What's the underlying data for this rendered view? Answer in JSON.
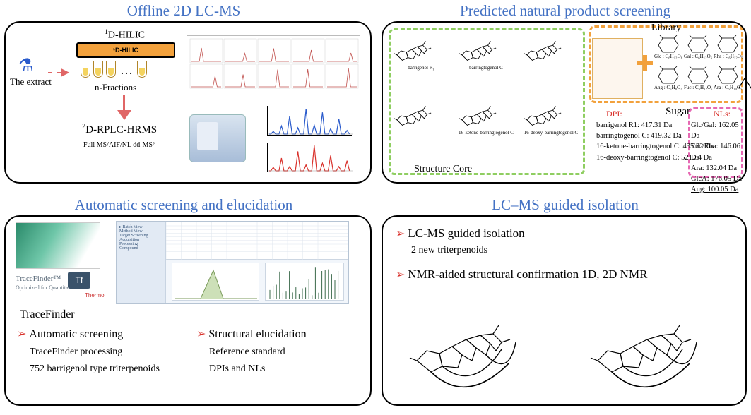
{
  "panel1": {
    "title": "Offline 2D LC-MS",
    "hilic_label_html": "<sup>1</sup>D-HILIC",
    "hilic_col_label": "¹D-HILIC",
    "extract_label": "The extract",
    "n_fractions": "n-Fractions",
    "rplc_label_html": "<sup>2</sup>D-RPLC-HRMS",
    "fullms": "Full MS/AIF/NL dd-MS²",
    "chrom1_peaks": [
      5,
      12,
      8,
      22,
      6,
      30,
      10,
      44,
      12,
      38,
      14,
      70,
      9,
      28,
      6,
      14,
      4
    ],
    "mini1_color": "#2a5bcc",
    "mini1_peaks": [
      6,
      18,
      40,
      14,
      56,
      20,
      48,
      12,
      34,
      8
    ],
    "mini2_color": "#d9322c",
    "mini2_peaks": [
      8,
      30,
      10,
      46,
      14,
      60,
      18,
      36,
      10,
      24
    ]
  },
  "panel2": {
    "title": "Predicted natural product screening",
    "library_label": "Library",
    "sugar_label": "Sugar",
    "core_label": "Structure Core",
    "dpi_label": "DPI:",
    "nl_label": "NLs:",
    "core_mol_labels": [
      "barrigenol R₁",
      "barringtogenol C",
      "",
      "",
      "16-ketone-barringtogenol C",
      "16-deoxy-barringtogenol C"
    ],
    "dpi_lines": [
      "barrigenol R1: 417.31 Da",
      "barringtogenol C: 419.32 Da",
      "16-ketone-barringtogenol C: 435.32 Da",
      "16-deoxy-barringtogenol C: 521.34 Da"
    ],
    "nl_lines": [
      "Glc/Gal: 162.05 Da",
      "Fuc/Rha: 146.06 Da",
      "Ara: 132.04 Da",
      "GlcA: 176.05 Da",
      "Ang: 100.05 Da"
    ],
    "sugar_labels": [
      "Glc : C₆H₁₂O₆",
      "Gal : C₆H₁₂O₆",
      "Rha : C₆H₁₂O₅",
      "Ang : C₅H₈O₂",
      "Fuc : C₆H₁₂O₅",
      "Ara : C₅H₁₀O₅",
      "GlcA : C₆H₁₀O₇"
    ]
  },
  "panel3": {
    "title": "Automatic screening and elucidation",
    "tf_brand": "TraceFinder™",
    "tf_sub": "Optimized for Quantitation",
    "tf_tag": "Tf",
    "thermo": "Thermo",
    "tracefinder": "TraceFinder",
    "colA_head": "Automatic screening",
    "colA_1": "TraceFinder processing",
    "colA_2": "752 barrigenol type triterpenoids",
    "colB_head": "Structural elucidation",
    "colB_1": "Reference standard",
    "colB_2": "DPIs and NLs"
  },
  "panel4": {
    "title": "LC–MS guided isolation",
    "line1": "LC-MS guided isolation",
    "line1_sub": "2 new triterpenoids",
    "line2": "NMR-aided structural confirmation 1D, 2D NMR"
  },
  "colors": {
    "title": "#4472c4",
    "chevron": "#d9322c",
    "hilic": "#f2a13c",
    "arrow": "#e06666",
    "dash_green": "#8fce61",
    "dash_orange": "#f2a13c",
    "dash_pink": "#e668b3"
  }
}
